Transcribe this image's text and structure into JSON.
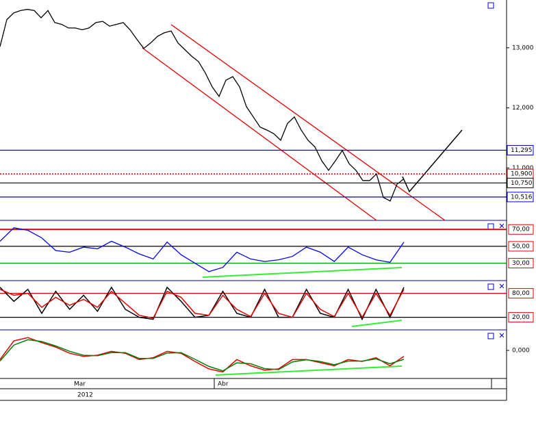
{
  "chart_data": [
    {
      "type": "line",
      "color": "#000000",
      "values": [
        13020,
        13470,
        13580,
        13620,
        13640,
        13620,
        13500,
        13620,
        13420,
        13390,
        13330,
        13330,
        13300,
        13330,
        13420,
        13440,
        13360,
        13390,
        13420,
        13300,
        13140,
        12990,
        13080,
        13190,
        13250,
        13280,
        13080,
        12970,
        12860,
        12770,
        12580,
        12350,
        12190,
        12460,
        12520,
        12350,
        12020,
        11850,
        11680,
        11630,
        11570,
        11460,
        11740,
        11850,
        11630,
        11460,
        11350,
        11120,
        10960,
        11120,
        11290,
        11070,
        10960,
        10790,
        10790,
        10900,
        10510,
        10450,
        10730,
        10820
      ],
      "ylim": [
        10150,
        13750
      ],
      "yticks": [
        {
          "value": 13000,
          "label": "13,000"
        },
        {
          "value": 12000,
          "label": "12,000"
        },
        {
          "value": 11000,
          "label": "11,000"
        }
      ],
      "levels": [
        {
          "value": 11295,
          "label": "11,295",
          "color": "#0000cc"
        },
        {
          "value": 10900,
          "label": "10,900",
          "color": "#cc0000"
        },
        {
          "value": 10750,
          "label": "10,750",
          "color": "#000000"
        },
        {
          "value": 10516,
          "label": "10,516",
          "color": "#0000cc"
        }
      ]
    },
    {
      "type": "line",
      "color": "#0000ff",
      "values": [
        56,
        72,
        69,
        60,
        45,
        43,
        49,
        47,
        56,
        49,
        41,
        35,
        55,
        40,
        30,
        20,
        25,
        43,
        35,
        32,
        34,
        38,
        49,
        43,
        32,
        49,
        40,
        34,
        31,
        55
      ],
      "ylim": [
        11,
        77.5
      ],
      "yticks": [
        {
          "value": 70,
          "label": "70,00"
        },
        {
          "value": 50,
          "label": "50,00"
        },
        {
          "value": 30,
          "label": "30,00"
        }
      ],
      "ytick_colors": [
        "#e00000",
        "#000000",
        "#00a000"
      ]
    },
    {
      "type": "line",
      "series": [
        {
          "color": "#000000",
          "values": [
            95,
            60,
            90,
            30,
            85,
            40,
            75,
            35,
            95,
            40,
            20,
            15,
            95,
            60,
            20,
            25,
            85,
            30,
            20,
            90,
            20,
            20,
            90,
            30,
            20,
            90,
            15,
            90,
            20,
            95
          ]
        },
        {
          "color": "#e00000",
          "values": [
            90,
            75,
            80,
            45,
            70,
            50,
            65,
            45,
            85,
            55,
            25,
            18,
            85,
            70,
            30,
            25,
            75,
            40,
            22,
            80,
            30,
            20,
            80,
            40,
            22,
            80,
            20,
            80,
            25,
            90
          ]
        }
      ],
      "ylim": [
        -8,
        105
      ],
      "yticks": [
        {
          "value": 80,
          "label": "80,00"
        },
        {
          "value": 20,
          "label": "20,00"
        }
      ],
      "ytick_colors": [
        "#e00000",
        "#000000"
      ]
    },
    {
      "type": "line",
      "series": [
        {
          "color": "#e00000",
          "values": [
            -103,
            108,
            144,
            87,
            38,
            -32,
            -68,
            -54,
            -11,
            -32,
            -103,
            -82,
            -11,
            -32,
            -124,
            -208,
            -243,
            -103,
            -173,
            -222,
            -208,
            -103,
            -103,
            -138,
            -173,
            -103,
            -124,
            -82,
            -173,
            -68
          ]
        },
        {
          "color": "#008000",
          "values": [
            -120,
            60,
            120,
            100,
            50,
            -10,
            -55,
            -60,
            -25,
            -25,
            -90,
            -90,
            -30,
            -25,
            -100,
            -180,
            -230,
            -140,
            -150,
            -205,
            -215,
            -130,
            -105,
            -125,
            -160,
            -120,
            -120,
            -95,
            -150,
            -100
          ]
        }
      ],
      "ylim": [
        -300,
        200
      ],
      "yticks": [
        {
          "value": 0,
          "label": "0,000"
        }
      ],
      "months": [
        "Mar",
        "Abr"
      ],
      "year": "2012"
    }
  ]
}
